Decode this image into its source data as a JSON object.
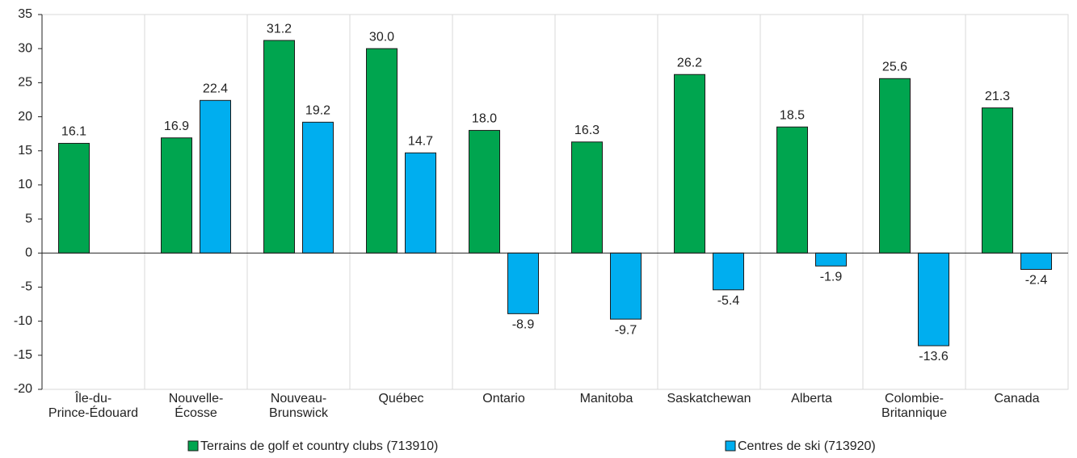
{
  "chart_data": {
    "type": "bar",
    "categories": [
      [
        "Île-du-",
        "Prince-Édouard"
      ],
      [
        "Nouvelle-",
        "Écosse"
      ],
      [
        "Nouveau-",
        "Brunswick"
      ],
      [
        "Québec"
      ],
      [
        "Ontario"
      ],
      [
        "Manitoba"
      ],
      [
        "Saskatchewan"
      ],
      [
        "Alberta"
      ],
      [
        "Colombie-",
        "Britannique"
      ],
      [
        "Canada"
      ]
    ],
    "series": [
      {
        "name": "Terrains de golf et country clubs (713910)",
        "color": "#00a54f",
        "values": [
          16.1,
          16.9,
          31.2,
          30.0,
          18.0,
          16.3,
          26.2,
          18.5,
          25.6,
          21.3
        ],
        "value_labels": [
          "16.1",
          "16.9",
          "31.2",
          "30.0",
          "18.0",
          "16.3",
          "26.2",
          "18.5",
          "25.6",
          "21.3"
        ]
      },
      {
        "name": "Centres de ski (713920)",
        "color": "#00aeef",
        "values": [
          null,
          22.4,
          19.2,
          14.7,
          -8.9,
          -9.7,
          -5.4,
          -1.9,
          -13.6,
          -2.4
        ],
        "value_labels": [
          null,
          "22.4",
          "19.2",
          "14.7",
          "-8.9",
          "-9.7",
          "-5.4",
          "-1.9",
          "-13.6",
          "-2.4"
        ]
      }
    ],
    "ylim": [
      -20,
      35
    ],
    "yticks": [
      -20,
      -15,
      -10,
      -5,
      0,
      5,
      10,
      15,
      20,
      25,
      30,
      35
    ],
    "legend": "bottom"
  }
}
